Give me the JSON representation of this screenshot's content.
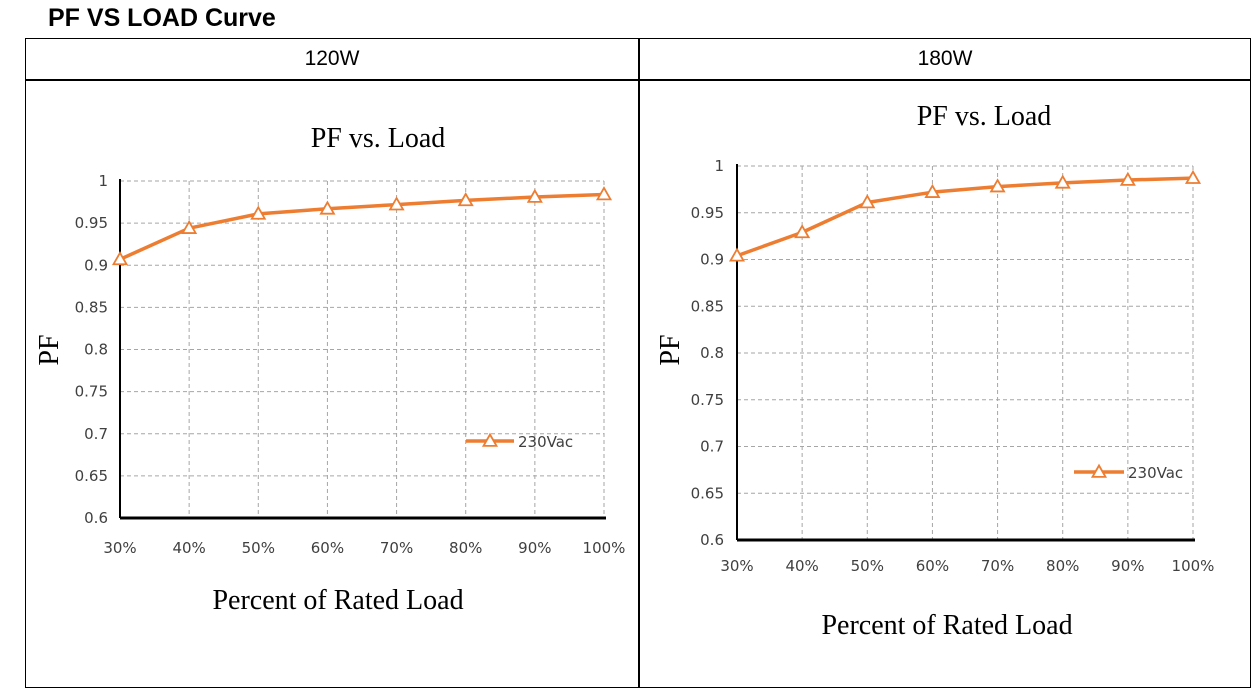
{
  "page": {
    "title": "PF VS LOAD Curve",
    "columns": [
      "120W",
      "180W"
    ]
  },
  "style": {
    "line_color": "#ED7D31",
    "grid_color": "#A6A6A6",
    "axis_color": "#000000"
  },
  "chart_data": [
    {
      "type": "line",
      "title": "PF vs. Load",
      "xlabel": "Percent of Rated Load",
      "ylabel": "PF",
      "categories": [
        "30%",
        "40%",
        "50%",
        "60%",
        "70%",
        "80%",
        "90%",
        "100%"
      ],
      "ylim": [
        0.6,
        1
      ],
      "yticks": [
        0.6,
        0.65,
        0.7,
        0.75,
        0.8,
        0.85,
        0.9,
        0.95,
        1
      ],
      "ytick_labels": [
        "0.6",
        "0.65",
        "0.7",
        "0.75",
        "0.8",
        "0.85",
        "0.9",
        "0.95",
        "1"
      ],
      "grid": true,
      "legend_position": "right-middle",
      "series": [
        {
          "name": "230Vac",
          "marker": "triangle",
          "values": [
            0.907,
            0.944,
            0.961,
            0.967,
            0.972,
            0.977,
            0.981,
            0.984
          ]
        }
      ]
    },
    {
      "type": "line",
      "title": "PF vs. Load",
      "xlabel": "Percent of Rated Load",
      "ylabel": "PF",
      "categories": [
        "30%",
        "40%",
        "50%",
        "60%",
        "70%",
        "80%",
        "90%",
        "100%"
      ],
      "ylim": [
        0.6,
        1
      ],
      "yticks": [
        0.6,
        0.65,
        0.7,
        0.75,
        0.8,
        0.85,
        0.9,
        0.95,
        1
      ],
      "ytick_labels": [
        "0.6",
        "0.65",
        "0.7",
        "0.75",
        "0.8",
        "0.85",
        "0.9",
        "0.95",
        "1"
      ],
      "grid": true,
      "legend_position": "bottom-right",
      "series": [
        {
          "name": "230Vac",
          "marker": "triangle",
          "values": [
            0.904,
            0.929,
            0.961,
            0.972,
            0.978,
            0.982,
            0.985,
            0.987
          ]
        }
      ]
    }
  ]
}
